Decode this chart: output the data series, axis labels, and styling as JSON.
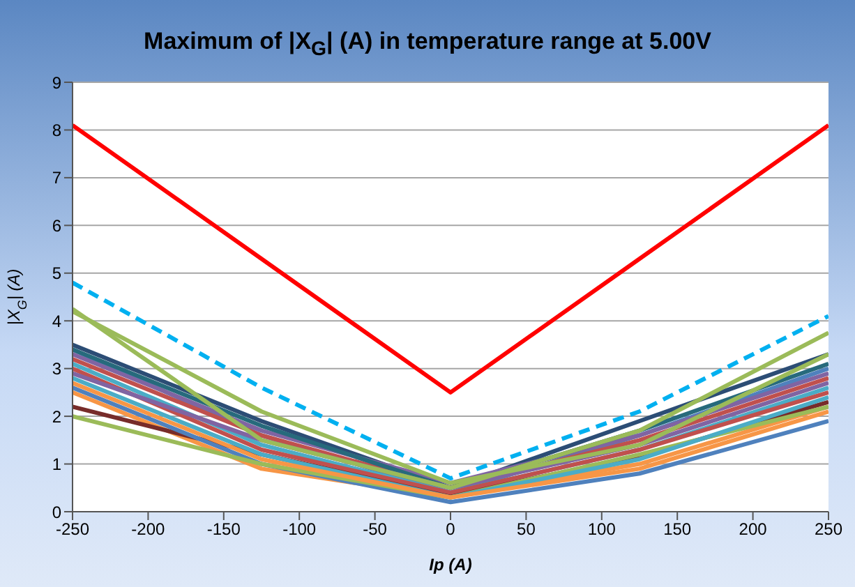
{
  "chart_data": {
    "type": "line",
    "title": "Maximum of |X$_{G}$| (A) in temperature range at 5.00V",
    "xlabel": "Ip (A)",
    "ylabel": "|X$_{G}$| (A)",
    "x": [
      -250,
      -125,
      0,
      125,
      250
    ],
    "xlim": [
      -250,
      250
    ],
    "xticks": [
      -250,
      -200,
      -150,
      -100,
      -50,
      0,
      50,
      100,
      150,
      200,
      250
    ],
    "ylim": [
      0,
      9
    ],
    "yticks": [
      0,
      1,
      2,
      3,
      4,
      5,
      6,
      7,
      8,
      9
    ],
    "grid": "y",
    "legend": false,
    "marker": "none",
    "line_style": "solid",
    "series": [
      {
        "color": "#2c4d75",
        "values": [
          3.5,
          1.9,
          0.5,
          1.9,
          3.3
        ]
      },
      {
        "color": "#4f81bd",
        "values": [
          3.4,
          1.6,
          0.4,
          1.6,
          3.0
        ]
      },
      {
        "color": "#c0504d",
        "values": [
          3.2,
          1.6,
          0.5,
          1.5,
          2.8
        ]
      },
      {
        "color": "#8064a2",
        "values": [
          3.3,
          1.7,
          0.6,
          1.6,
          2.9
        ]
      },
      {
        "color": "#4bacc6",
        "values": [
          3.1,
          1.4,
          0.4,
          1.3,
          2.6
        ]
      },
      {
        "color": "#276a7c",
        "values": [
          3.4,
          1.8,
          0.5,
          1.7,
          3.1
        ]
      },
      {
        "color": "#f79646",
        "values": [
          2.5,
          0.9,
          0.3,
          1.0,
          2.2
        ]
      },
      {
        "color": "#772c2a",
        "values": [
          2.2,
          1.2,
          0.35,
          1.15,
          2.3
        ]
      },
      {
        "color": "#4f81bd",
        "values": [
          2.6,
          1.0,
          0.2,
          0.8,
          1.9
        ]
      },
      {
        "color": "#c0504d",
        "values": [
          3.0,
          1.3,
          0.4,
          1.3,
          2.5
        ]
      },
      {
        "color": "#9bbb59",
        "values": [
          2.0,
          1.0,
          0.3,
          1.2,
          2.2
        ]
      },
      {
        "color": "#4bacc6",
        "values": [
          2.8,
          1.2,
          0.3,
          1.1,
          2.4
        ]
      },
      {
        "color": "#f79646",
        "values": [
          2.7,
          1.1,
          0.3,
          0.9,
          2.1
        ]
      },
      {
        "color": "#8064a2",
        "values": [
          2.9,
          1.5,
          0.5,
          1.4,
          2.7
        ]
      },
      {
        "color": "#9bbb59",
        "values": [
          4.2,
          2.1,
          0.6,
          1.4,
          3.3
        ]
      },
      {
        "color": "#9bbb59",
        "values": [
          4.25,
          1.5,
          0.5,
          1.7,
          3.75
        ]
      },
      {
        "color": "#00b0f0",
        "line_style": "dashed",
        "values": [
          4.8,
          2.6,
          0.7,
          2.1,
          4.1
        ]
      },
      {
        "color": "#ff0000",
        "values": [
          8.1,
          5.3,
          2.5,
          5.3,
          8.1
        ]
      }
    ]
  }
}
